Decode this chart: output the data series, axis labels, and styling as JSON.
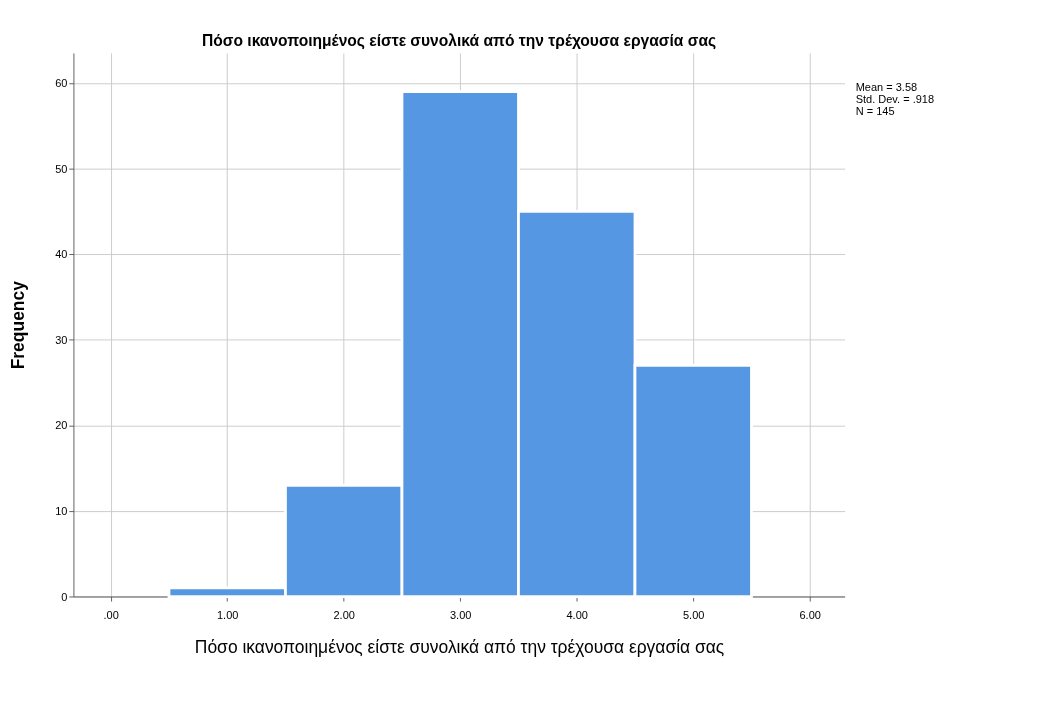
{
  "chart_data": {
    "type": "histogram",
    "title": "Πόσο ικανοποιημένος είστε συνολικά από την τρέχουσα εργασία σας",
    "xlabel": "Πόσο ικανοποιημένος είστε συνολικά από την τρέχουσα εργασία σας",
    "ylabel": "Frequency",
    "bins": [
      0.5,
      1.5,
      2.5,
      3.5,
      4.5,
      5.5
    ],
    "values": [
      1,
      13,
      59,
      45,
      27
    ],
    "color": "#5597e2",
    "xlim": [
      -0.32,
      6.3
    ],
    "xticks": [
      {
        "value": 0,
        "label": ".00"
      },
      {
        "value": 1,
        "label": "1.00"
      },
      {
        "value": 2,
        "label": "2.00"
      },
      {
        "value": 3,
        "label": "3.00"
      },
      {
        "value": 4,
        "label": "4.00"
      },
      {
        "value": 5,
        "label": "5.00"
      },
      {
        "value": 6,
        "label": "6.00"
      }
    ],
    "ylim": [
      0,
      63.5
    ],
    "yticks": [
      0,
      10,
      20,
      30,
      40,
      50,
      60
    ],
    "grid": true,
    "annotations": [
      "Mean = 3.58",
      "Std. Dev. = .918",
      "N = 145"
    ]
  }
}
